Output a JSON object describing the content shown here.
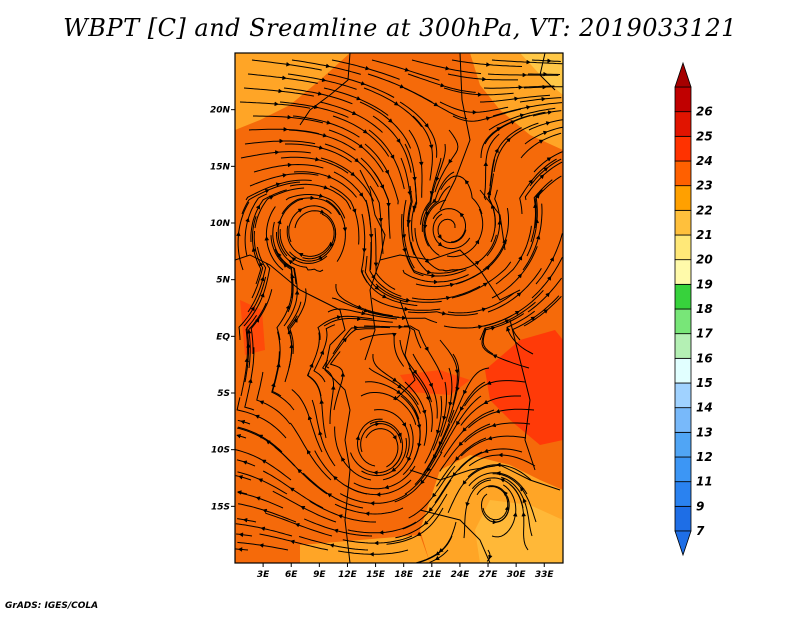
{
  "title": "WBPT [C] and Sreamline at 300hPa, VT: 2019033121",
  "footer": "GrADS: IGES/COLA",
  "map": {
    "lon_range": [
      0,
      35
    ],
    "lat_range": [
      -20,
      25
    ],
    "lat_ticks": [
      {
        "value": 20,
        "label": "20N"
      },
      {
        "value": 15,
        "label": "15N"
      },
      {
        "value": 10,
        "label": "10N"
      },
      {
        "value": 5,
        "label": "5N"
      },
      {
        "value": 0,
        "label": "EQ"
      },
      {
        "value": -5,
        "label": "5S"
      },
      {
        "value": -10,
        "label": "10S"
      },
      {
        "value": -15,
        "label": "15S"
      }
    ],
    "lon_ticks": [
      {
        "value": 3,
        "label": "3E"
      },
      {
        "value": 6,
        "label": "6E"
      },
      {
        "value": 9,
        "label": "9E"
      },
      {
        "value": 12,
        "label": "12E"
      },
      {
        "value": 15,
        "label": "15E"
      },
      {
        "value": 18,
        "label": "18E"
      },
      {
        "value": 21,
        "label": "21E"
      },
      {
        "value": 24,
        "label": "24E"
      },
      {
        "value": 27,
        "label": "27E"
      },
      {
        "value": 30,
        "label": "30E"
      },
      {
        "value": 33,
        "label": "33E"
      }
    ]
  },
  "colorbar": {
    "levels": [
      {
        "label": "7",
        "color": "#1e6ee6"
      },
      {
        "label": "9",
        "color": "#2a82f0"
      },
      {
        "label": "11",
        "color": "#3c96f5"
      },
      {
        "label": "12",
        "color": "#50a5f5"
      },
      {
        "label": "13",
        "color": "#78b9fa"
      },
      {
        "label": "14",
        "color": "#a0d2ff"
      },
      {
        "label": "15",
        "color": "#e1ffff"
      },
      {
        "label": "16",
        "color": "#b4f0b4"
      },
      {
        "label": "17",
        "color": "#78e678"
      },
      {
        "label": "18",
        "color": "#37d23c"
      },
      {
        "label": "19",
        "color": "#fffaaa"
      },
      {
        "label": "20",
        "color": "#ffe878"
      },
      {
        "label": "21",
        "color": "#ffc03c"
      },
      {
        "label": "22",
        "color": "#ffa000"
      },
      {
        "label": "23",
        "color": "#ff6000"
      },
      {
        "label": "24",
        "color": "#ff3200"
      },
      {
        "label": "25",
        "color": "#e11400"
      },
      {
        "label": "26",
        "color": "#c00000"
      }
    ],
    "under_color": "#1e6ee6",
    "over_color": "#a50000"
  }
}
